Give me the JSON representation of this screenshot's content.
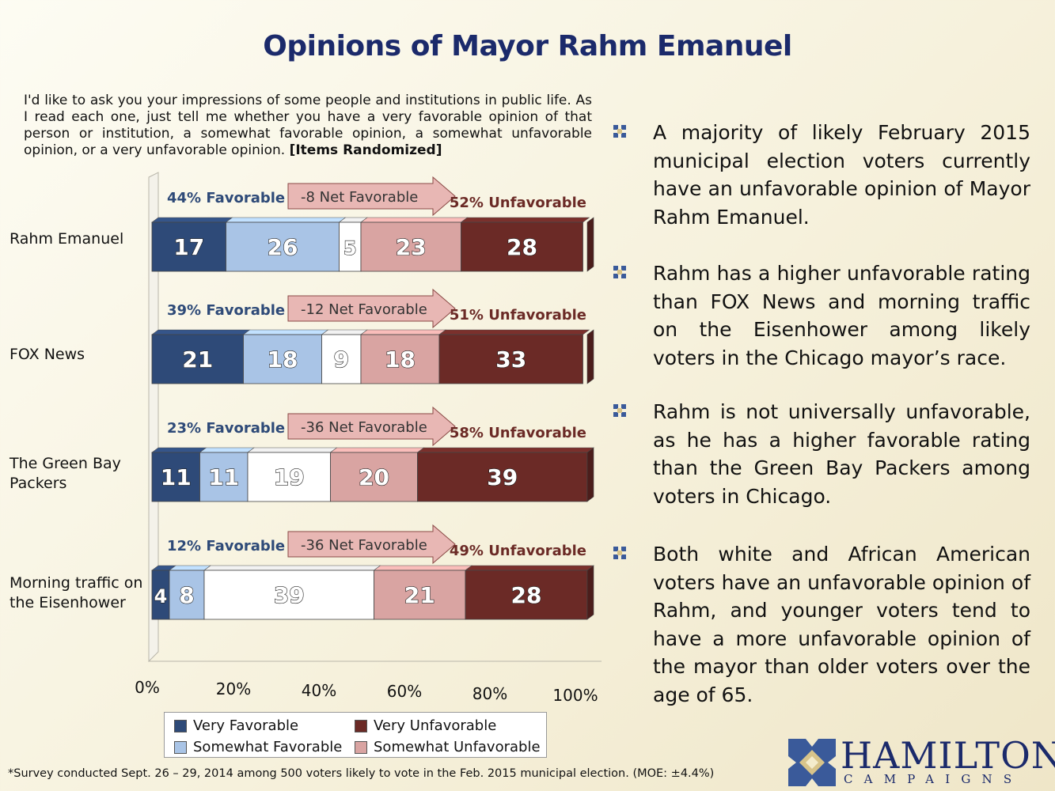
{
  "title": "Opinions of Mayor Rahm Emanuel",
  "question": {
    "text": "I'd like to ask you your impressions of some people and institutions in public life.  As I read each one, just tell me whether you have a very favorable opinion of that person or institution, a somewhat favorable opinion, a somewhat unfavorable opinion, or a very unfavorable opinion.",
    "note": "[Items Randomized]"
  },
  "colors": {
    "very_favorable": "#2e4a78",
    "somewhat_favorable": "#a9c4e6",
    "no_opinion": "#ffffff",
    "somewhat_unfavorable": "#d9a4a2",
    "very_unfavorable": "#6b2a26",
    "title": "#1b2a6b"
  },
  "chart_data": {
    "type": "bar",
    "orientation": "horizontal",
    "stacked": true,
    "categories": [
      "Rahm Emanuel",
      "FOX News",
      "The Green Bay Packers",
      "Morning traffic on the Eisenhower"
    ],
    "series": [
      {
        "name": "Very Favorable",
        "values": [
          17,
          21,
          11,
          4
        ]
      },
      {
        "name": "Somewhat Favorable",
        "values": [
          26,
          18,
          11,
          8
        ]
      },
      {
        "name": "",
        "values": [
          5,
          9,
          19,
          39
        ]
      },
      {
        "name": "Somewhat Unfavorable",
        "values": [
          23,
          18,
          20,
          21
        ]
      },
      {
        "name": "Very Unfavorable",
        "values": [
          28,
          33,
          39,
          28
        ]
      }
    ],
    "annotations": {
      "favorable": [
        "44% Favorable",
        "39% Favorable",
        "23% Favorable",
        "12% Favorable"
      ],
      "net": [
        "-8  Net Favorable",
        "-12  Net Favorable",
        "-36  Net Favorable",
        "-36  Net Favorable"
      ],
      "unfavorable": [
        "52% Unfavorable",
        "51% Unfavorable",
        "58% Unfavorable",
        "49% Unfavorable"
      ]
    },
    "x_ticks": [
      "0%",
      "20%",
      "40%",
      "60%",
      "80%",
      "100%"
    ],
    "xlim": [
      0,
      100
    ],
    "legend_position": "bottom",
    "grid": false
  },
  "legend": {
    "very_favorable": "Very Favorable",
    "somewhat_favorable": "Somewhat Favorable",
    "very_unfavorable": "Very Unfavorable",
    "somewhat_unfavorable": "Somewhat Unfavorable"
  },
  "bullets": [
    "A majority of likely February 2015 municipal election voters currently have an unfavorable opinion of Mayor Rahm Emanuel.",
    "Rahm has a higher unfavorable rating than FOX News and morning traffic on the Eisenhower among likely voters in the Chicago mayor’s race.",
    "Rahm is not universally unfavorable, as he has a higher favorable rating than the Green Bay Packers among voters in Chicago.",
    "Both white and African American voters have an unfavorable opinion of Rahm, and younger voters tend to have a more unfavorable opinion of the mayor than older voters over the age of 65."
  ],
  "footnote": "*Survey conducted Sept. 26 – 29, 2014 among 500 voters likely to vote in the Feb. 2015 municipal election.  (MOE: ±4.4%)",
  "logo": {
    "name": "HAMILTON",
    "sub": "CAMPAIGNS"
  }
}
